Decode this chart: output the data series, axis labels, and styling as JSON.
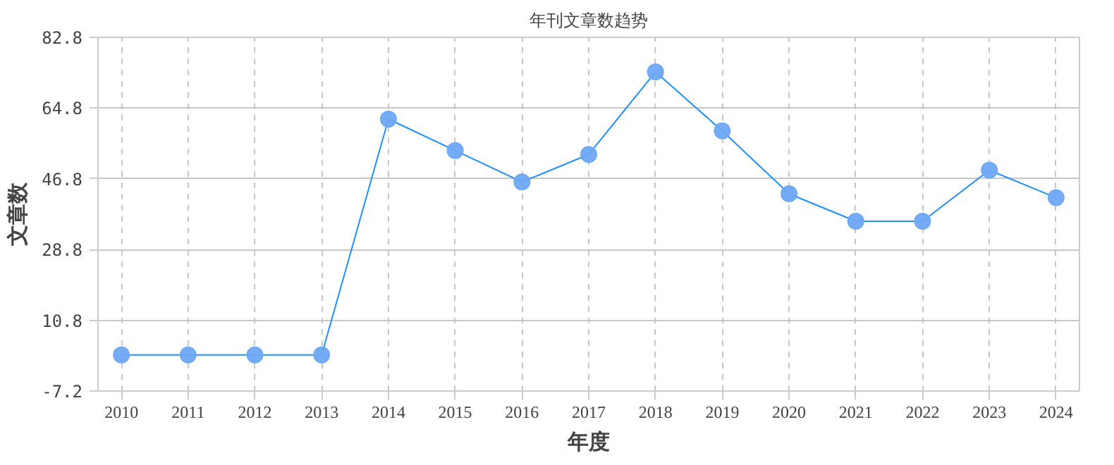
{
  "chart_data": {
    "type": "line",
    "title": "年刊文章数趋势",
    "xlabel": "年度",
    "ylabel": "文章数",
    "categories": [
      "2010",
      "2011",
      "2012",
      "2013",
      "2014",
      "2015",
      "2016",
      "2017",
      "2018",
      "2019",
      "2020",
      "2021",
      "2022",
      "2023",
      "2024"
    ],
    "series": [
      {
        "color": "#1e90ff",
        "values": [
          2,
          2,
          2,
          2,
          62,
          54,
          46,
          53,
          74,
          59,
          43,
          36,
          36,
          49,
          42
        ]
      }
    ],
    "ylim": [
      -7.2,
      82.8
    ],
    "yticks": [
      -7.2,
      10.8,
      28.8,
      46.8,
      64.8,
      82.8
    ],
    "grid": true,
    "marker": "circle",
    "line_style": "solid"
  }
}
